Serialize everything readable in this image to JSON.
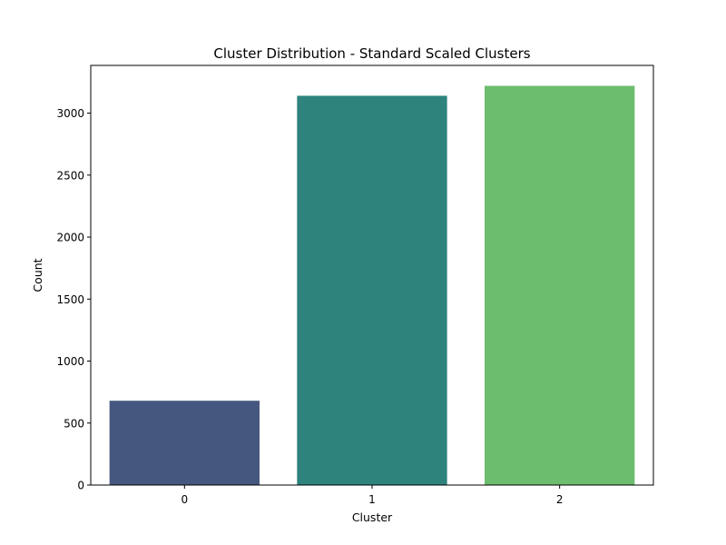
{
  "chart_data": {
    "type": "bar",
    "title": "Cluster Distribution - Standard Scaled Clusters",
    "xlabel": "Cluster",
    "ylabel": "Count",
    "categories": [
      "0",
      "1",
      "2"
    ],
    "values": [
      680,
      3140,
      3220
    ],
    "colors": [
      "#46577f",
      "#2e837d",
      "#6cbd6e"
    ],
    "ylim": [
      0,
      3385
    ],
    "yticks": [
      0,
      500,
      1000,
      1500,
      2000,
      2500,
      3000
    ],
    "grid": false
  }
}
